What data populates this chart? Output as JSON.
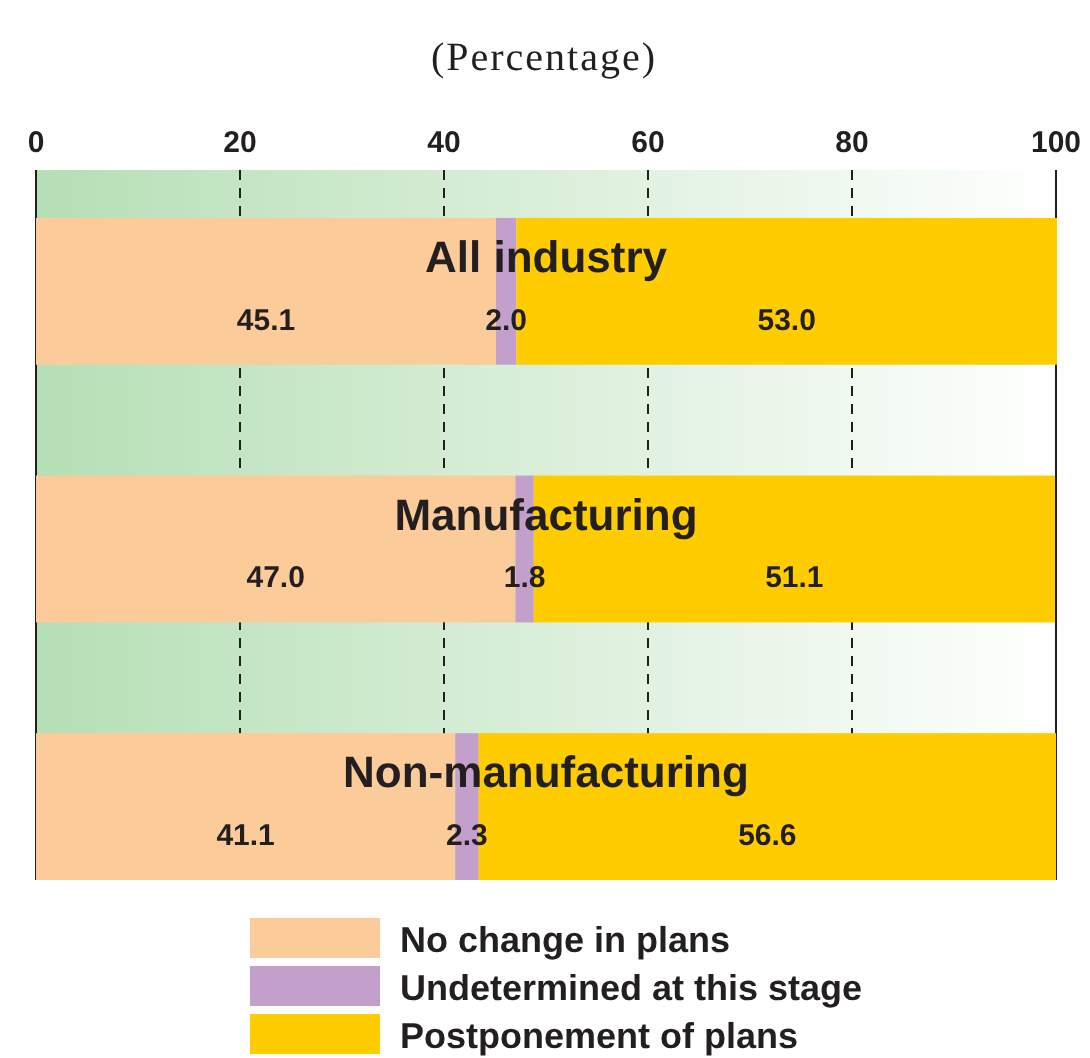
{
  "chart_data": {
    "type": "bar",
    "subtitle": "(Percentage)",
    "orientation": "horizontal",
    "stacked": true,
    "categories": [
      "All industry",
      "Manufacturing",
      "Non-manufacturing"
    ],
    "series": [
      {
        "name": "No change in plans",
        "color": "#fccb9a",
        "values": [
          45.1,
          47.0,
          41.1
        ]
      },
      {
        "name": "Undetermined at this stage",
        "color": "#c39fcc",
        "values": [
          2.0,
          1.8,
          2.3
        ]
      },
      {
        "name": "Postponement of plans",
        "color": "#ffcc00",
        "values": [
          53.0,
          51.1,
          56.6
        ]
      }
    ],
    "value_labels": [
      [
        "45.1",
        "47.0",
        "41.1"
      ],
      [
        "2.0",
        "1.8",
        "2.3"
      ],
      [
        "53.0",
        "51.1",
        "56.6"
      ]
    ],
    "xlim": [
      0,
      100
    ],
    "xticks": [
      0,
      20,
      40,
      60,
      80,
      100
    ],
    "grid": "x",
    "legend": "bottom"
  }
}
